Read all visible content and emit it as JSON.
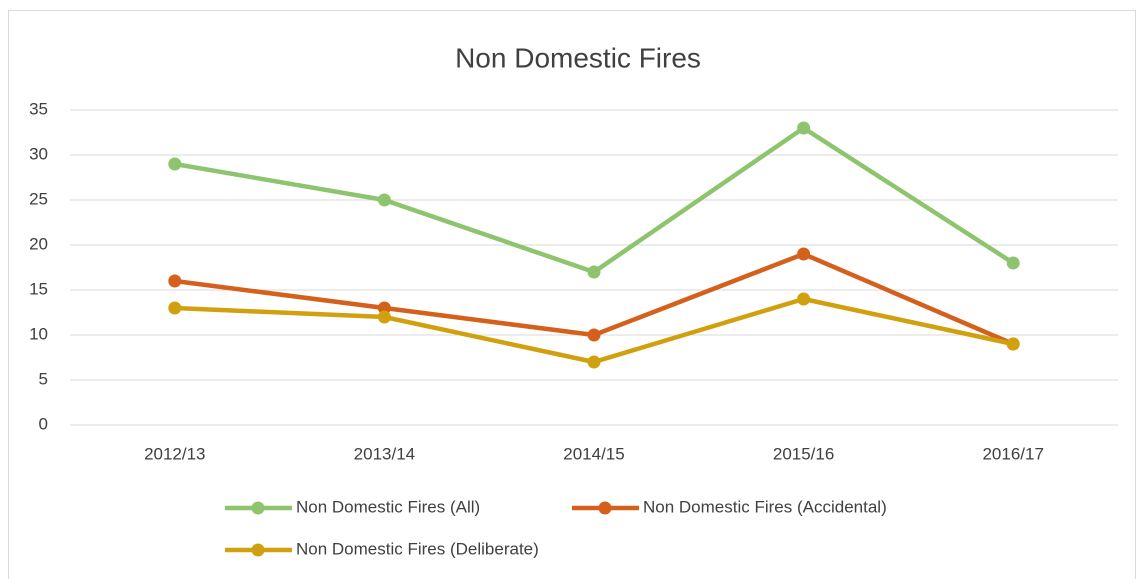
{
  "chart_data": {
    "type": "line",
    "title": "Non Domestic Fires",
    "categories": [
      "2012/13",
      "2013/14",
      "2014/15",
      "2015/16",
      "2016/17"
    ],
    "series": [
      {
        "name": "Non Domestic Fires (All)",
        "color": "#8dc46d",
        "values": [
          29,
          25,
          17,
          33,
          18
        ]
      },
      {
        "name": "Non Domestic Fires (Accidental)",
        "color": "#d5601c",
        "values": [
          16,
          13,
          10,
          19,
          9
        ]
      },
      {
        "name": "Non Domestic Fires (Deliberate)",
        "color": "#d1a00f",
        "values": [
          13,
          12,
          7,
          14,
          9
        ]
      }
    ],
    "ylim": [
      0,
      35
    ],
    "yticks": [
      0,
      5,
      10,
      15,
      20,
      25,
      30,
      35
    ],
    "grid": true,
    "legend": "bottom"
  }
}
